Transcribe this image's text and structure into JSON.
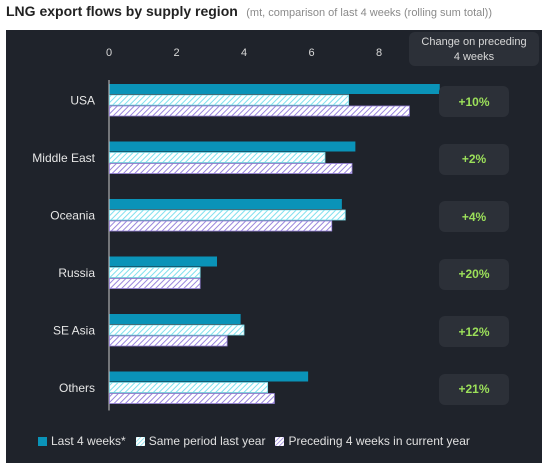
{
  "header": {
    "title": "LNG export flows by supply region",
    "subtitle": "(mt, comparison of last 4 weeks (rolling sum total))"
  },
  "change_header": {
    "line1": "Change on preceding",
    "line2": "4 weeks"
  },
  "changes": [
    "+10%",
    "+2%",
    "+4%",
    "+20%",
    "+12%",
    "+21%"
  ],
  "colors": {
    "background": "#1f232b",
    "last4": "#0a93b8",
    "same_period": "#7fe0ee",
    "preceding": "#9a86dd",
    "change_text": "#9ce05a"
  },
  "chart_data": {
    "type": "bar",
    "orientation": "horizontal",
    "categories": [
      "USA",
      "Middle East",
      "Oceania",
      "Russia",
      "SE Asia",
      "Others"
    ],
    "series": [
      {
        "name": "Last 4 weeks*",
        "values": [
          9.8,
          7.3,
          6.9,
          3.2,
          3.9,
          5.9
        ]
      },
      {
        "name": "Same period last year",
        "values": [
          7.1,
          6.4,
          7.0,
          2.7,
          4.0,
          4.7
        ]
      },
      {
        "name": "Preceding 4 weeks in current year",
        "values": [
          8.9,
          7.2,
          6.6,
          2.7,
          3.5,
          4.9
        ]
      }
    ],
    "xlim": [
      0,
      10
    ],
    "xticks": [
      0,
      2,
      4,
      6,
      8
    ],
    "grid": false,
    "legend": "bottom"
  }
}
